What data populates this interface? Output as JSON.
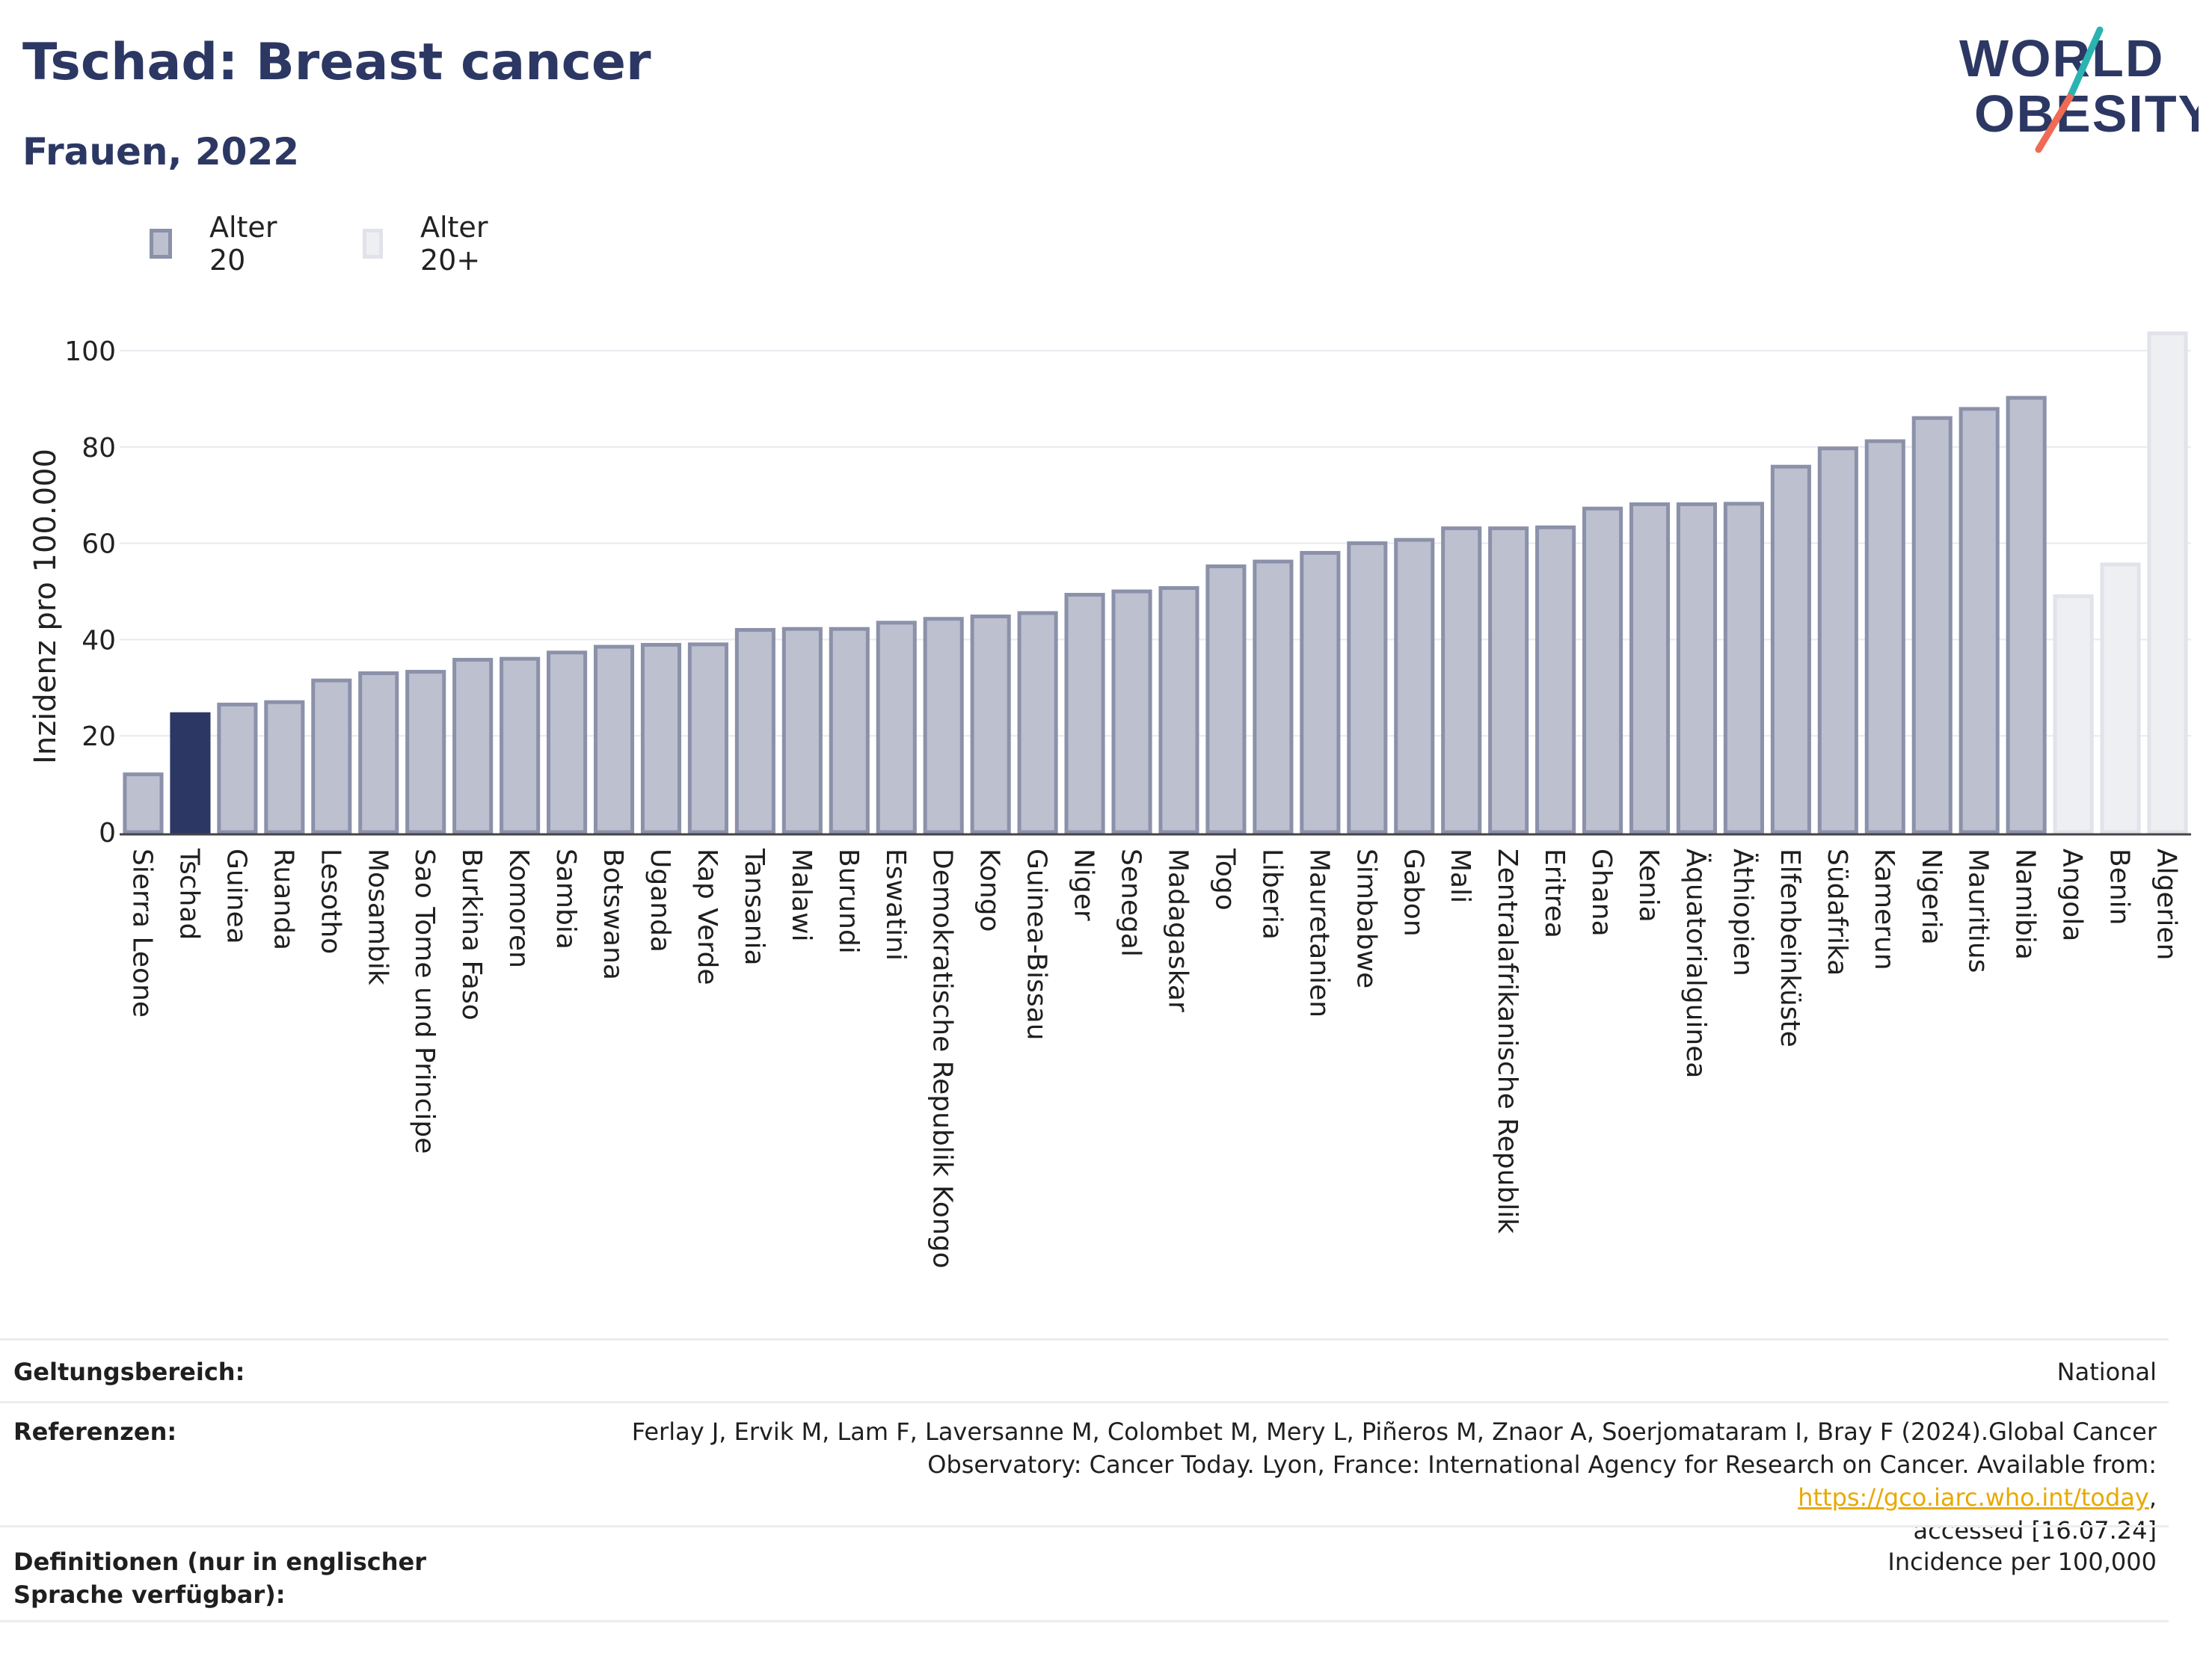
{
  "header": {
    "title": "Tschad: Breast cancer",
    "subtitle": "Frauen, 2022"
  },
  "logo": {
    "line1": "WORLD",
    "line2": "OBESITY"
  },
  "legend": [
    {
      "label": "Alter 20",
      "fill": "#bcc0cf",
      "stroke": "#8c91aa"
    },
    {
      "label": "Alter 20+",
      "fill": "#eeeff3",
      "stroke": "#e1e3ea"
    }
  ],
  "colors": {
    "highlight": "#2c3863",
    "series_age20_fill": "#bcc0cf",
    "series_age20_stroke": "#8c91aa",
    "series_age20plus_fill": "#eeeff3",
    "series_age20plus_stroke": "#e1e3ea",
    "title": "#2c3863",
    "link": "#e8a900",
    "logo_teal": "#2ab3b1",
    "logo_coral": "#f06b55"
  },
  "chart_data": {
    "type": "bar",
    "ylabel": "Inzidenz pro 100.000",
    "ylim": [
      0,
      105
    ],
    "yticks": [
      0,
      20,
      40,
      60,
      80,
      100
    ],
    "grid": true,
    "legend_position": "top-left",
    "highlight_category": "Tschad",
    "categories": [
      "Sierra Leone",
      "Tschad",
      "Guinea",
      "Ruanda",
      "Lesotho",
      "Mosambik",
      "Sao Tome und Principe",
      "Burkina Faso",
      "Komoren",
      "Sambia",
      "Botswana",
      "Uganda",
      "Kap Verde",
      "Tansania",
      "Malawi",
      "Burundi",
      "Eswatini",
      "Demokratische Republik Kongo",
      "Kongo",
      "Guinea-Bissau",
      "Niger",
      "Senegal",
      "Madagaskar",
      "Togo",
      "Liberia",
      "Mauretanien",
      "Simbabwe",
      "Gabon",
      "Mali",
      "Zentralafrikanische Republik",
      "Eritrea",
      "Ghana",
      "Kenia",
      "Äquatorialguinea",
      "Äthiopien",
      "Elfenbeinküste",
      "Südafrika",
      "Kamerun",
      "Nigeria",
      "Mauritius",
      "Namibia",
      "Angola",
      "Benin",
      "Algerien"
    ],
    "values": [
      12,
      24.5,
      26.5,
      27,
      31.5,
      33,
      33.3,
      35.8,
      36,
      37.3,
      38.5,
      38.9,
      39,
      42,
      42.2,
      42.2,
      43.5,
      44.3,
      44.8,
      45.5,
      49.3,
      50,
      50.7,
      55.2,
      56.2,
      58,
      60,
      60.7,
      63.1,
      63.1,
      63.3,
      67.2,
      68.1,
      68.1,
      68.2,
      75.9,
      79.7,
      81.2,
      86,
      87.9,
      90.2,
      49,
      55.6,
      103.6
    ],
    "series_by_category": [
      "Alter 20",
      "Alter 20",
      "Alter 20",
      "Alter 20",
      "Alter 20",
      "Alter 20",
      "Alter 20",
      "Alter 20",
      "Alter 20",
      "Alter 20",
      "Alter 20",
      "Alter 20",
      "Alter 20",
      "Alter 20",
      "Alter 20",
      "Alter 20",
      "Alter 20",
      "Alter 20",
      "Alter 20",
      "Alter 20",
      "Alter 20",
      "Alter 20",
      "Alter 20",
      "Alter 20",
      "Alter 20",
      "Alter 20",
      "Alter 20",
      "Alter 20",
      "Alter 20",
      "Alter 20",
      "Alter 20",
      "Alter 20",
      "Alter 20",
      "Alter 20",
      "Alter 20",
      "Alter 20",
      "Alter 20",
      "Alter 20",
      "Alter 20",
      "Alter 20",
      "Alter 20",
      "Alter 20+",
      "Alter 20+",
      "Alter 20+"
    ]
  },
  "footer": {
    "scope_label": "Geltungsbereich:",
    "scope_value": "National",
    "references_label": "Referenzen:",
    "references_line1": "Ferlay J, Ervik M, Lam F, Laversanne M, Colombet M, Mery L, Piñeros M, Znaor A, Soerjomataram I, Bray F (2024).Global Cancer",
    "references_line2_pre": "Observatory: Cancer Today. Lyon, France: International Agency for Research on Cancer. Available from: ",
    "references_link": "https://gco.iarc.who.int/today",
    "references_line2_post": ",",
    "references_line3": "accessed [16.07.24]",
    "definitions_label": "Definitionen (nur in englischer Sprache verfügbar):",
    "definitions_value": "Incidence per 100,000"
  }
}
